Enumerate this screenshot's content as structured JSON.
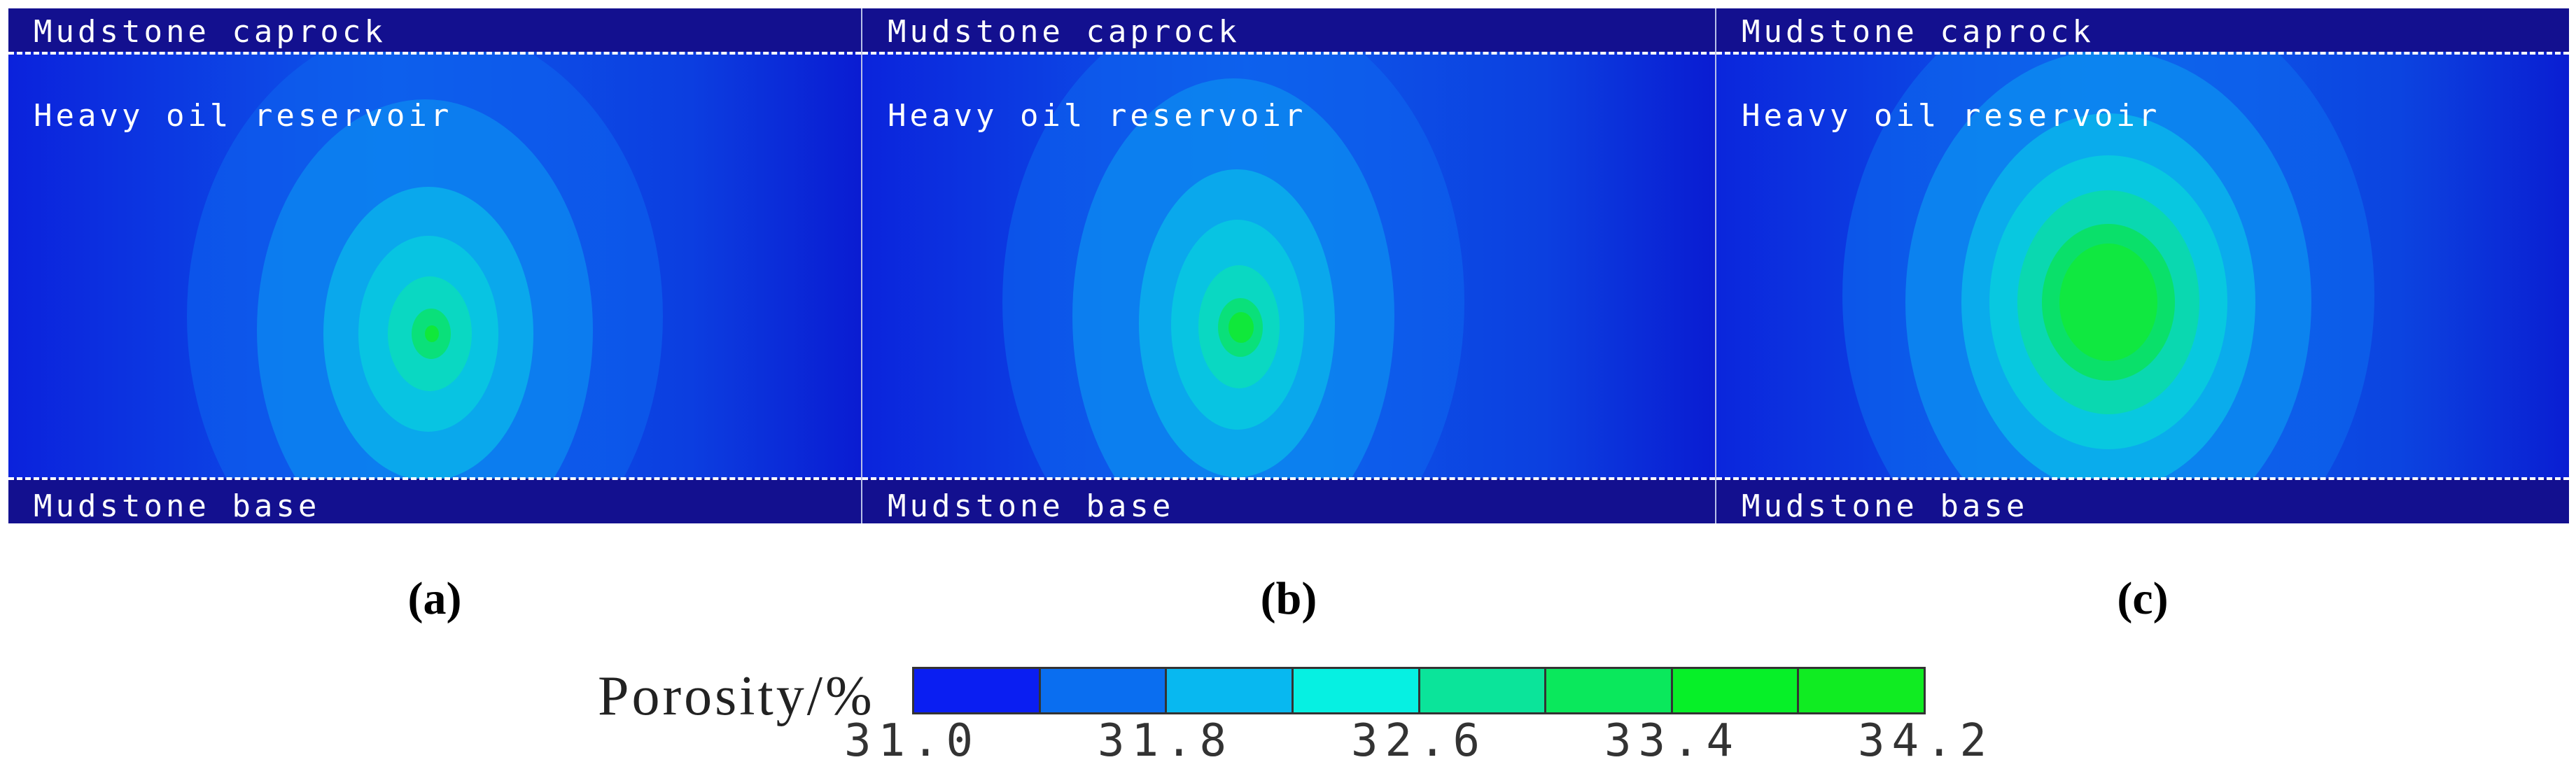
{
  "panels": [
    {
      "id": "a",
      "caption": "(a)",
      "caprock_label": "Mudstone caprock",
      "reservoir_label": "Heavy oil reservoir",
      "base_label": "Mudstone base",
      "center_porosity": 33.4
    },
    {
      "id": "b",
      "caption": "(b)",
      "caprock_label": "Mudstone caprock",
      "reservoir_label": "Heavy oil reservoir",
      "base_label": "Mudstone base",
      "center_porosity": 33.8
    },
    {
      "id": "c",
      "caption": "(c)",
      "caprock_label": "Mudstone caprock",
      "reservoir_label": "Heavy oil reservoir",
      "base_label": "Mudstone base",
      "center_porosity": 34.2
    }
  ],
  "legend": {
    "title": "Porosity/%",
    "ticks": [
      "31.0",
      "31.8",
      "32.6",
      "33.4",
      "34.2"
    ],
    "min": 31.0,
    "max": 34.2,
    "colors": [
      "#0a1ef2",
      "#0a6ef0",
      "#08b8f0",
      "#06f0e2",
      "#0be49a",
      "#0ae85c",
      "#06f028",
      "#10ec22"
    ]
  },
  "colors": {
    "background_field": "#0b1bd6",
    "mudstone": "#13108f"
  }
}
